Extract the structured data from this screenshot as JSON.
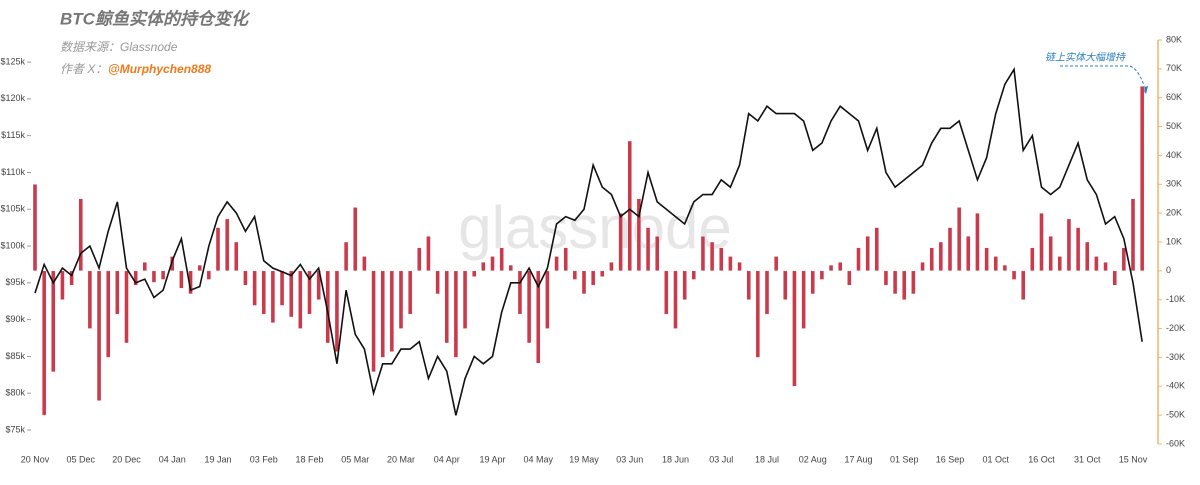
{
  "chart_data": {
    "type": "bar-line",
    "title": "BTC鲸鱼实体的持仓变化",
    "subtitle": "数据来源：Glassnode",
    "author_label": "作者 X：",
    "author": "@Murphychen888",
    "watermark": "glassnode",
    "annotation": "链上实体大幅增持",
    "categories": [
      "20 Nov",
      null,
      null,
      null,
      null,
      "05 Dec",
      null,
      null,
      null,
      null,
      "20 Dec",
      null,
      null,
      null,
      null,
      "04 Jan",
      null,
      null,
      null,
      null,
      "19 Jan",
      null,
      null,
      null,
      null,
      "03 Feb",
      null,
      null,
      null,
      null,
      "18 Feb",
      null,
      null,
      null,
      null,
      "05 Mar",
      null,
      null,
      null,
      null,
      "20 Mar",
      null,
      null,
      null,
      null,
      "04 Apr",
      null,
      null,
      null,
      null,
      "19 Apr",
      null,
      null,
      null,
      null,
      "04 May",
      null,
      null,
      null,
      null,
      "19 May",
      null,
      null,
      null,
      null,
      "03 Jun",
      null,
      null,
      null,
      null,
      "18 Jun",
      null,
      null,
      null,
      null,
      "03 Jul",
      null,
      null,
      null,
      null,
      "18 Jul",
      null,
      null,
      null,
      null,
      "02 Aug",
      null,
      null,
      null,
      null,
      "17 Aug",
      null,
      null,
      null,
      null,
      "01 Sep",
      null,
      null,
      null,
      null,
      "16 Sep",
      null,
      null,
      null,
      null,
      "01 Oct",
      null,
      null,
      null,
      null,
      "16 Oct",
      null,
      null,
      null,
      null,
      "31 Oct",
      null,
      null,
      null,
      null,
      "15 Nov",
      null
    ],
    "series": [
      {
        "name": "Holdings change",
        "kind": "bar",
        "axis": "y2",
        "color": "#c83a4c",
        "values": [
          30000,
          -50000,
          -35000,
          -10000,
          -5000,
          25000,
          -20000,
          -45000,
          -30000,
          -15000,
          -25000,
          -5000,
          3000,
          -4000,
          -3000,
          5000,
          -6000,
          -8000,
          2000,
          -3000,
          15000,
          18000,
          10000,
          -5000,
          -12000,
          -15000,
          -18000,
          -12000,
          -16000,
          -20000,
          -15000,
          -10000,
          -25000,
          -28000,
          10000,
          22000,
          5000,
          -35000,
          -30000,
          -28000,
          -20000,
          -15000,
          8000,
          12000,
          -8000,
          -25000,
          -30000,
          -20000,
          -2000,
          3000,
          5000,
          8000,
          2000,
          -15000,
          -25000,
          -32000,
          -20000,
          5000,
          8000,
          -3000,
          -8000,
          -5000,
          -2000,
          3000,
          20000,
          45000,
          25000,
          15000,
          12000,
          -15000,
          -20000,
          -10000,
          -3000,
          12000,
          10000,
          8000,
          5000,
          3000,
          -10000,
          -30000,
          -15000,
          5000,
          -10000,
          -40000,
          -20000,
          -8000,
          -3000,
          2000,
          3000,
          -5000,
          8000,
          12000,
          15000,
          -5000,
          -8000,
          -10000,
          -8000,
          3000,
          8000,
          10000,
          15000,
          22000,
          12000,
          20000,
          8000,
          5000,
          2000,
          -3000,
          -10000,
          8000,
          20000,
          12000,
          5000,
          18000,
          15000,
          10000,
          5000,
          3000,
          -5000,
          8000,
          25000,
          64000
        ]
      },
      {
        "name": "BTC price",
        "kind": "line",
        "axis": "y",
        "color": "#111111",
        "values": [
          93600,
          97500,
          95000,
          97000,
          96000,
          99000,
          100000,
          97000,
          102000,
          106000,
          97000,
          95000,
          95500,
          93000,
          94000,
          98000,
          101000,
          94000,
          94500,
          100000,
          104000,
          106000,
          104500,
          102000,
          104000,
          98000,
          97000,
          96500,
          96000,
          97500,
          95500,
          97000,
          91000,
          84000,
          94000,
          88000,
          86000,
          80000,
          84000,
          84000,
          86000,
          86000,
          87000,
          82000,
          85000,
          83000,
          77000,
          82000,
          85000,
          84000,
          85000,
          91000,
          95000,
          95000,
          97000,
          94500,
          97000,
          103000,
          104000,
          103500,
          105000,
          111000,
          108000,
          107000,
          104000,
          105000,
          104000,
          110000,
          106000,
          105000,
          104000,
          103000,
          106000,
          107000,
          107000,
          109000,
          108000,
          111000,
          118000,
          117000,
          119000,
          118000,
          118000,
          118000,
          117000,
          113000,
          114000,
          117000,
          119000,
          118000,
          117000,
          113000,
          116000,
          110000,
          108000,
          109000,
          110000,
          111000,
          114000,
          116000,
          116000,
          117000,
          113000,
          109000,
          112000,
          118000,
          122000,
          124000,
          113000,
          115000,
          108000,
          107000,
          108000,
          111000,
          114000,
          109000,
          107000,
          103000,
          104000,
          101000,
          95000,
          87000
        ]
      }
    ],
    "ylim": [
      73100,
      128000
    ],
    "yticks": [
      {
        "value": 75000,
        "label": "$75k"
      },
      {
        "value": 80000,
        "label": "$80k"
      },
      {
        "value": 85000,
        "label": "$85k"
      },
      {
        "value": 90000,
        "label": "$90k"
      },
      {
        "value": 95000,
        "label": "$95k"
      },
      {
        "value": 100000,
        "label": "$100k"
      },
      {
        "value": 105000,
        "label": "$105k"
      },
      {
        "value": 110000,
        "label": "$110k"
      },
      {
        "value": 115000,
        "label": "$115k"
      },
      {
        "value": 120000,
        "label": "$120k"
      },
      {
        "value": 125000,
        "label": "$125k"
      }
    ],
    "y2lim": [
      -60000,
      80000
    ],
    "y2ticks": [
      {
        "value": -60000,
        "label": "-60K"
      },
      {
        "value": -50000,
        "label": "-50K"
      },
      {
        "value": -40000,
        "label": "-40K"
      },
      {
        "value": -30000,
        "label": "-30K"
      },
      {
        "value": -20000,
        "label": "-20K"
      },
      {
        "value": -10000,
        "label": "-10K"
      },
      0,
      {
        "value": 10000,
        "label": "10K"
      },
      {
        "value": 20000,
        "label": "20K"
      },
      {
        "value": 30000,
        "label": "30K"
      },
      {
        "value": 40000,
        "label": "40K"
      },
      {
        "value": 50000,
        "label": "50K"
      },
      {
        "value": 60000,
        "label": "60K"
      },
      {
        "value": 70000,
        "label": "70K"
      },
      {
        "value": 80000,
        "label": "80K"
      }
    ],
    "y2_axis_color": "#f2b36b"
  }
}
